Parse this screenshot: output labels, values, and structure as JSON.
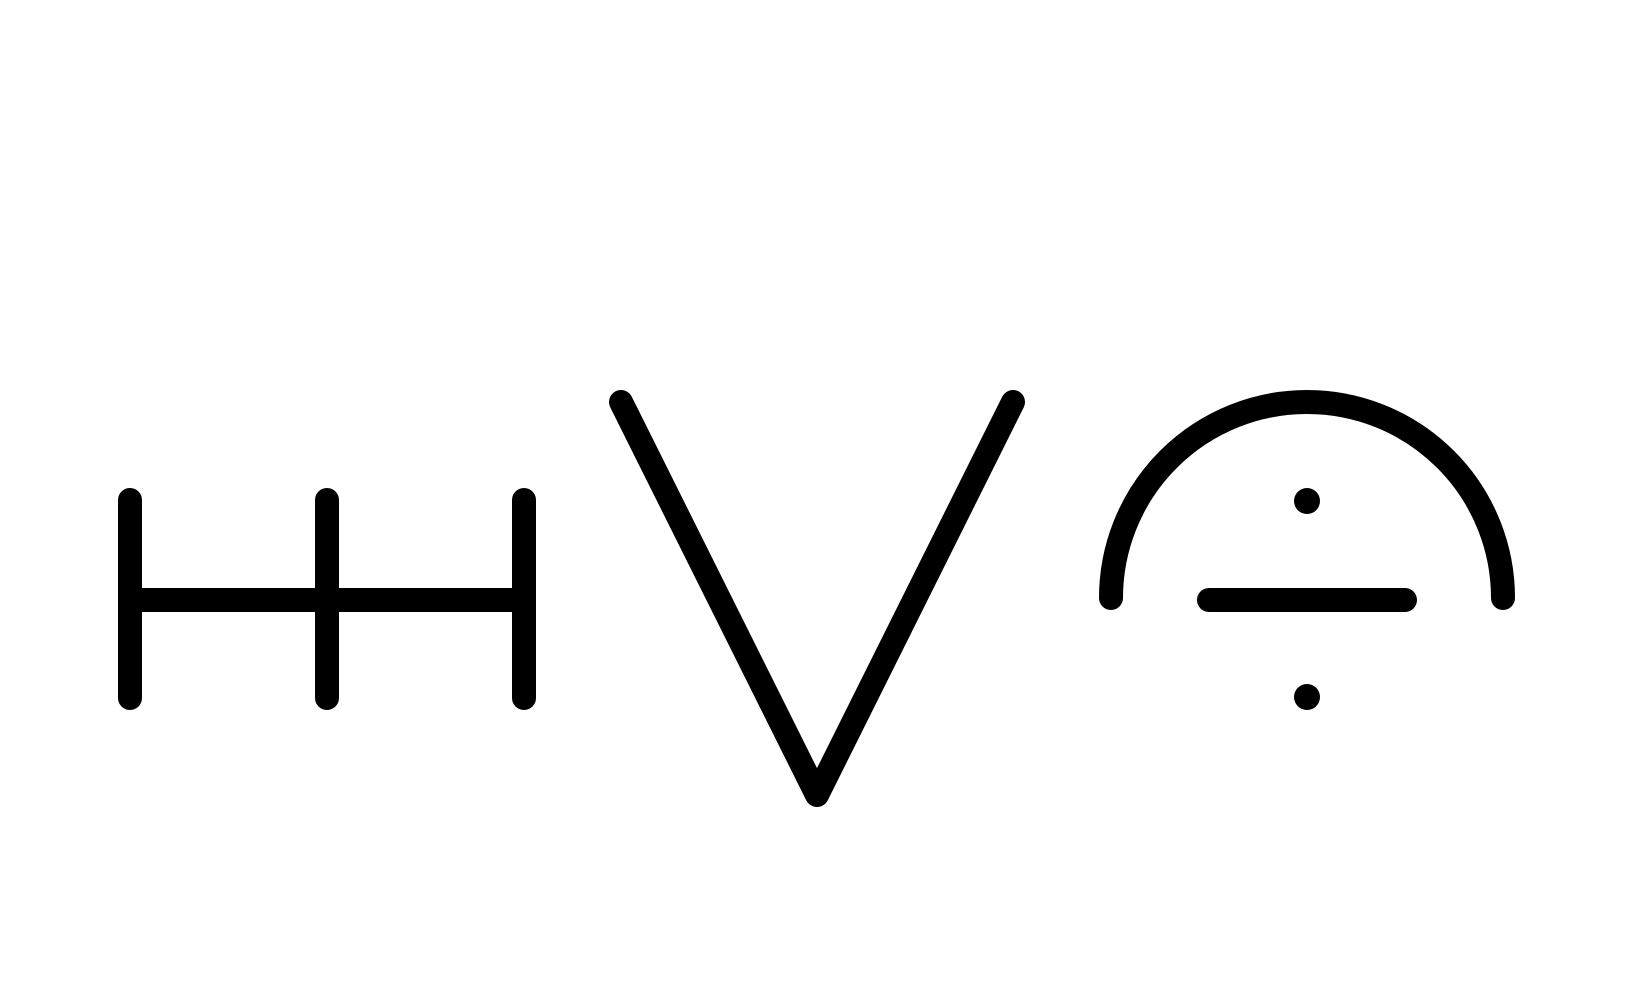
{
  "background": "#ffffff",
  "ink_color": "#000000",
  "symbols": [
    {
      "name": "triple-bar-h-symbol",
      "description_icon": "h-shaped-bar-icon"
    },
    {
      "name": "v-symbol",
      "description_icon": "v-shape-icon"
    },
    {
      "name": "arc-divide-symbol",
      "description_icon": "arc-over-division-icon"
    }
  ]
}
